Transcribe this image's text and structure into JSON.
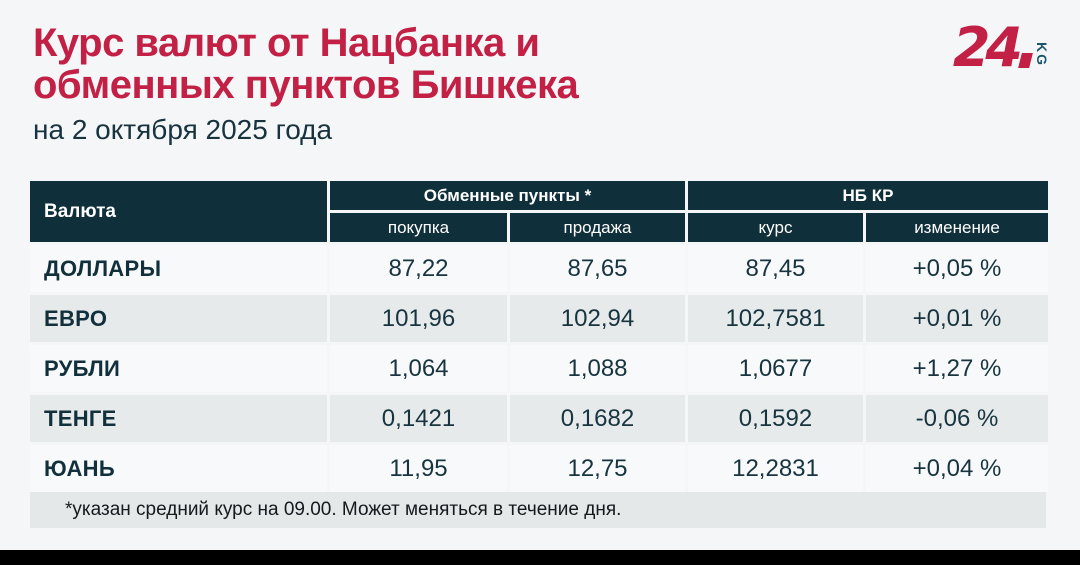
{
  "page": {
    "title_line1": "Курс валют от Нацбанка и",
    "title_line2": "обменных пунктов Бишкека",
    "subtitle": "на 2 октября 2025 года",
    "footnote": "*указан средний курс на 09.00. Может меняться в течение дня."
  },
  "logo": {
    "number": "24",
    "suffix": "KG"
  },
  "colors": {
    "brand_red": "#c22045",
    "header_teal": "#0f2f3a",
    "logo_kg_teal": "#19566b",
    "row_light": "#f7f9fa",
    "row_gray": "#e6eaeb",
    "footnote_band": "#e4e8e9",
    "page_background": "#f4f6f8",
    "text_dark_teal": "#17343f"
  },
  "table": {
    "currency_header": "Валюта",
    "group_exchange": "Обменные пункты *",
    "group_nbkr": "НБ КР",
    "sub_buy": "покупка",
    "sub_sell": "продажа",
    "sub_rate": "курс",
    "sub_change": "изменение"
  },
  "chart_data": {
    "type": "table",
    "title": "Курс валют от Нацбанка и обменных пунктов Бишкека",
    "subtitle": "на 2 октября 2025 года",
    "column_groups": [
      "Валюта",
      "Обменные пункты *",
      "НБ КР"
    ],
    "columns": [
      "Валюта",
      "покупка",
      "продажа",
      "курс",
      "изменение"
    ],
    "rows": [
      [
        "ДОЛЛАРЫ",
        "87,22",
        "87,65",
        "87,45",
        "+0,05 %"
      ],
      [
        "ЕВРО",
        "101,96",
        "102,94",
        "102,7581",
        "+0,01 %"
      ],
      [
        "РУБЛИ",
        "1,064",
        "1,088",
        "1,0677",
        "+1,27 %"
      ],
      [
        "ТЕНГЕ",
        "0,1421",
        "0,1682",
        "0,1592",
        "-0,06 %"
      ],
      [
        "ЮАНЬ",
        "11,95",
        "12,75",
        "12,2831",
        "+0,04 %"
      ]
    ],
    "footnote": "*указан средний курс на 09.00. Может меняться в течение дня."
  }
}
